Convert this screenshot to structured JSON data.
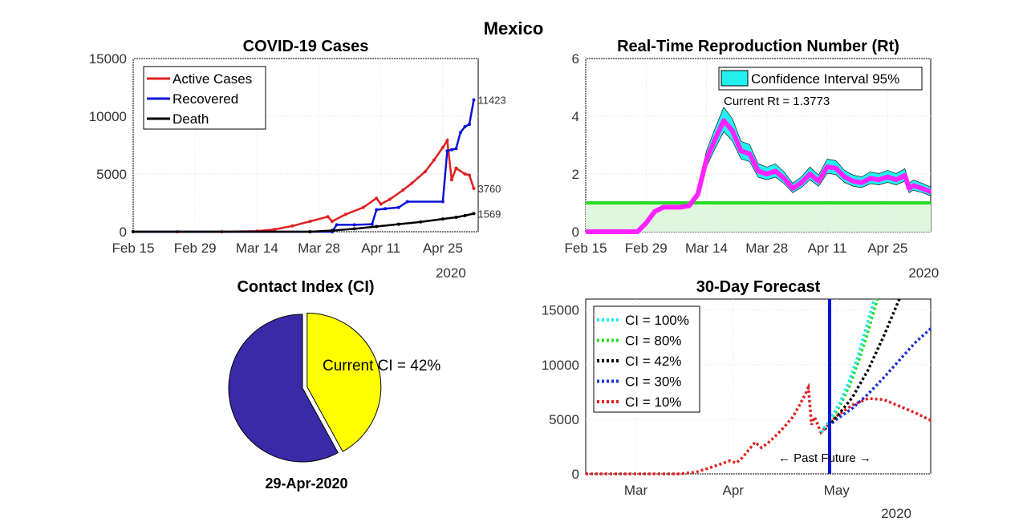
{
  "figure": {
    "title": "Mexico"
  },
  "chart_data": [
    {
      "type": "line",
      "title": "COVID-19 Cases",
      "x_ticks": [
        "Feb 15",
        "Feb 29",
        "Mar 14",
        "Mar 28",
        "Apr 11",
        "Apr 25"
      ],
      "x_year": "2020",
      "x_range": [
        "2020-02-15",
        "2020-04-29"
      ],
      "y_ticks": [
        "0",
        "5000",
        "10000",
        "15000"
      ],
      "ylim": [
        0,
        15000
      ],
      "grid": true,
      "legend_position": "top-left",
      "series": [
        {
          "name": "Active Cases",
          "color": "#e02020",
          "points": [
            [
              0,
              0
            ],
            [
              10,
              0
            ],
            [
              20,
              0
            ],
            [
              28,
              50
            ],
            [
              32,
              200
            ],
            [
              36,
              500
            ],
            [
              40,
              900
            ],
            [
              44,
              1300
            ],
            [
              45,
              900
            ],
            [
              48,
              1500
            ],
            [
              52,
              2100
            ],
            [
              55,
              2900
            ],
            [
              56,
              2400
            ],
            [
              58,
              2800
            ],
            [
              61,
              3600
            ],
            [
              63,
              4200
            ],
            [
              66,
              5200
            ],
            [
              68,
              6200
            ],
            [
              70,
              7300
            ],
            [
              71,
              7900
            ],
            [
              72,
              4500
            ],
            [
              73,
              5500
            ],
            [
              75,
              5000
            ],
            [
              76,
              4900
            ],
            [
              77,
              3760
            ]
          ],
          "end_label": "3760"
        },
        {
          "name": "Recovered",
          "color": "#0a14d8",
          "points": [
            [
              0,
              0
            ],
            [
              45,
              0
            ],
            [
              46,
              600
            ],
            [
              50,
              600
            ],
            [
              54,
              650
            ],
            [
              55,
              1900
            ],
            [
              57,
              2000
            ],
            [
              60,
              2100
            ],
            [
              62,
              2600
            ],
            [
              70,
              2600
            ],
            [
              71,
              7000
            ],
            [
              72,
              7100
            ],
            [
              73,
              7200
            ],
            [
              74,
              8600
            ],
            [
              75,
              9100
            ],
            [
              76,
              9300
            ],
            [
              77,
              11423
            ]
          ],
          "end_label": "11423"
        },
        {
          "name": "Death",
          "color": "#000000",
          "points": [
            [
              0,
              0
            ],
            [
              40,
              0
            ],
            [
              45,
              100
            ],
            [
              50,
              250
            ],
            [
              55,
              450
            ],
            [
              60,
              650
            ],
            [
              65,
              850
            ],
            [
              70,
              1100
            ],
            [
              73,
              1250
            ],
            [
              75,
              1400
            ],
            [
              77,
              1569
            ]
          ],
          "end_label": "1569"
        }
      ]
    },
    {
      "type": "line",
      "title": "Real-Time Reproduction Number (Rt)",
      "x_ticks": [
        "Feb 15",
        "Feb 29",
        "Mar 14",
        "Mar 28",
        "Apr 11",
        "Apr 25"
      ],
      "x_year": "2020",
      "y_ticks": [
        "0",
        "2",
        "4",
        "6"
      ],
      "ylim": [
        0,
        6
      ],
      "grid": true,
      "legend_position": "top-right",
      "legend_label": "Confidence Interval 95%",
      "annotation": "Current Rt = 1.3773",
      "threshold": 1,
      "series": [
        {
          "name": "Rt",
          "color": "#ff22ff",
          "points": [
            [
              0,
              0
            ],
            [
              5,
              0
            ],
            [
              12,
              0
            ],
            [
              14,
              0.3
            ],
            [
              16,
              0.7
            ],
            [
              18,
              0.85
            ],
            [
              20,
              0.85
            ],
            [
              22,
              0.85
            ],
            [
              24,
              0.9
            ],
            [
              26,
              1.3
            ],
            [
              28,
              2.5
            ],
            [
              30,
              3.2
            ],
            [
              32,
              3.85
            ],
            [
              34,
              3.5
            ],
            [
              36,
              2.8
            ],
            [
              38,
              2.7
            ],
            [
              40,
              2.1
            ],
            [
              42,
              2.0
            ],
            [
              44,
              2.1
            ],
            [
              46,
              1.85
            ],
            [
              48,
              1.5
            ],
            [
              50,
              1.7
            ],
            [
              52,
              2.0
            ],
            [
              54,
              1.75
            ],
            [
              56,
              2.25
            ],
            [
              58,
              2.2
            ],
            [
              60,
              1.9
            ],
            [
              62,
              1.75
            ],
            [
              64,
              1.7
            ],
            [
              66,
              1.85
            ],
            [
              68,
              1.8
            ],
            [
              70,
              1.9
            ],
            [
              72,
              1.8
            ],
            [
              74,
              1.95
            ],
            [
              75,
              1.5
            ],
            [
              76,
              1.6
            ],
            [
              78,
              1.5
            ],
            [
              80,
              1.38
            ]
          ]
        }
      ]
    },
    {
      "type": "pie",
      "title": "Contact Index (CI)",
      "label": "Current CI = 42%",
      "slices": [
        {
          "name": "Current CI",
          "value": 42,
          "color": "#ffff00"
        },
        {
          "name": "Remainder",
          "value": 58,
          "color": "#3a2aa8"
        }
      ],
      "xlabel": "29-Apr-2020"
    },
    {
      "type": "line",
      "title": "30-Day Forecast",
      "x_ticks": [
        "Mar",
        "Apr",
        "May"
      ],
      "x_year": "2020",
      "y_ticks": [
        "0",
        "5000",
        "10000",
        "15000"
      ],
      "ylim": [
        0,
        16000
      ],
      "grid": true,
      "legend_position": "top-left",
      "annotation": "← Past  Future →",
      "series": [
        {
          "name": "CI = 100%",
          "color": "#22e5f0",
          "points": [
            [
              75,
              3800
            ],
            [
              78,
              5000
            ],
            [
              81,
              6500
            ],
            [
              84,
              8500
            ],
            [
              87,
              11000
            ],
            [
              90,
              14000
            ],
            [
              92,
              16000
            ]
          ]
        },
        {
          "name": "CI = 80%",
          "color": "#22e022",
          "points": [
            [
              75,
              3800
            ],
            [
              78,
              4900
            ],
            [
              81,
              6200
            ],
            [
              84,
              8000
            ],
            [
              87,
              10300
            ],
            [
              90,
              13000
            ],
            [
              93,
              16000
            ]
          ]
        },
        {
          "name": "CI = 42%",
          "color": "#000000",
          "points": [
            [
              75,
              3800
            ],
            [
              80,
              5200
            ],
            [
              85,
              7000
            ],
            [
              90,
              9500
            ],
            [
              95,
              12600
            ],
            [
              100,
              16000
            ]
          ]
        },
        {
          "name": "CI = 30%",
          "color": "#1a30d8",
          "points": [
            [
              75,
              3800
            ],
            [
              80,
              5000
            ],
            [
              85,
              6000
            ],
            [
              90,
              7300
            ],
            [
              95,
              8800
            ],
            [
              100,
              10400
            ],
            [
              105,
              12000
            ],
            [
              110,
              13300
            ]
          ]
        },
        {
          "name": "CI = 10%",
          "color": "#e02020",
          "points": [
            [
              0,
              0
            ],
            [
              30,
              0
            ],
            [
              35,
              150
            ],
            [
              40,
              600
            ],
            [
              43,
              900
            ],
            [
              46,
              1200
            ],
            [
              48,
              1000
            ],
            [
              50,
              1500
            ],
            [
              54,
              2900
            ],
            [
              56,
              2400
            ],
            [
              58,
              2800
            ],
            [
              61,
              3600
            ],
            [
              63,
              4200
            ],
            [
              66,
              5200
            ],
            [
              68,
              6200
            ],
            [
              70,
              7300
            ],
            [
              71,
              7900
            ],
            [
              72,
              4500
            ],
            [
              73,
              5200
            ],
            [
              75,
              3800
            ],
            [
              80,
              5300
            ],
            [
              85,
              6300
            ],
            [
              90,
              6900
            ],
            [
              95,
              6800
            ],
            [
              100,
              6200
            ],
            [
              105,
              5600
            ],
            [
              110,
              4900
            ]
          ]
        }
      ]
    }
  ]
}
